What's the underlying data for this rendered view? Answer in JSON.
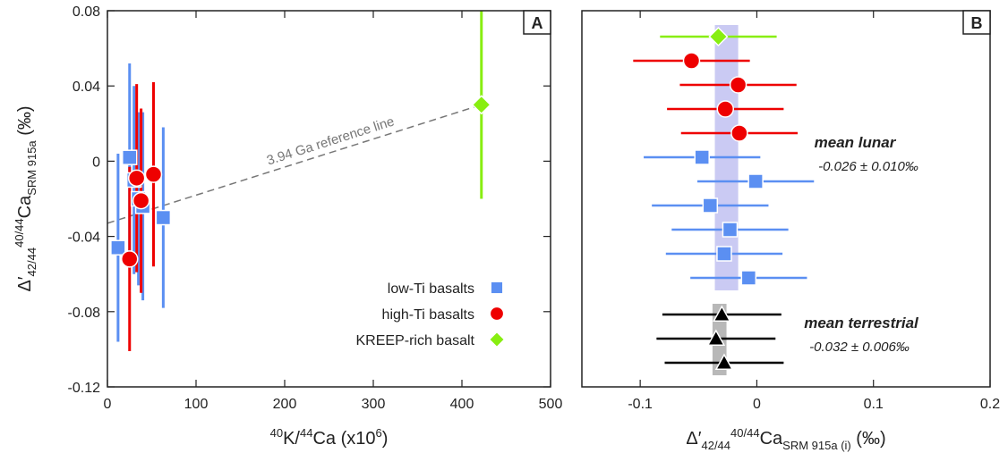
{
  "chart_data": [
    {
      "type": "scatter",
      "panel_label": "A",
      "xlabel": [
        {
          "text": "40",
          "shift": "super"
        },
        {
          "text": "K/"
        },
        {
          "text": "44",
          "shift": "super"
        },
        {
          "text": "Ca (x10"
        },
        {
          "text": "6",
          "shift": "super"
        },
        {
          "text": ")"
        }
      ],
      "ylabel": [
        {
          "text": "Δ′"
        },
        {
          "text": "42/44",
          "shift": "sub"
        },
        {
          "text": "40/44",
          "shift": "super"
        },
        {
          "text": "Ca"
        },
        {
          "text": "SRM 915a",
          "shift": "sub"
        },
        {
          "text": " (‰)"
        }
      ],
      "xlim": [
        0,
        500
      ],
      "xticks": [
        0,
        100,
        200,
        300,
        400,
        500
      ],
      "ylim": [
        -0.12,
        0.08
      ],
      "yticks": [
        -0.12,
        -0.08,
        -0.04,
        0,
        0.04,
        0.08
      ],
      "legend": "lower right",
      "reference_line": {
        "label": "3.94 Ga reference line",
        "x": [
          0,
          422
        ],
        "values": [
          -0.033,
          0.03
        ],
        "color": "#777777"
      },
      "series": [
        {
          "name": "low-Ti basalts",
          "marker": "square",
          "color": "#5b8ff2",
          "x": [
            25,
            12,
            63,
            35,
            40,
            30
          ],
          "values": [
            0.002,
            -0.046,
            -0.03,
            -0.02,
            -0.024,
            -0.01
          ],
          "errors": [
            0.05,
            0.05,
            0.048,
            0.046,
            0.05,
            0.05
          ]
        },
        {
          "name": "high-Ti basalts",
          "marker": "circle",
          "color": "#ee0000",
          "x": [
            33,
            52,
            38,
            25
          ],
          "values": [
            -0.009,
            -0.007,
            -0.021,
            -0.052
          ],
          "errors": [
            0.05,
            0.049,
            0.049,
            0.049
          ]
        },
        {
          "name": "KREEP-rich basalt",
          "marker": "diamond",
          "color": "#88ee11",
          "x": [
            422
          ],
          "values": [
            0.03
          ],
          "errors": [
            0.05
          ]
        }
      ]
    },
    {
      "type": "dot",
      "panel_label": "B",
      "xlabel": [
        {
          "text": "Δ′"
        },
        {
          "text": "42/44",
          "shift": "sub"
        },
        {
          "text": "40/44",
          "shift": "super"
        },
        {
          "text": "Ca"
        },
        {
          "text": "SRM 915a (i)",
          "shift": "sub"
        },
        {
          "text": " (‰)"
        }
      ],
      "xlim": [
        -0.15,
        0.2
      ],
      "xticks": [
        -0.1,
        0,
        0.1,
        0.2
      ],
      "bands": [
        {
          "label": "mean lunar",
          "text": "-0.026 ± 0.010‰",
          "mean": -0.026,
          "err": 0.01,
          "color": "#c4c4f2"
        },
        {
          "label": "mean terrestrial",
          "text": "-0.032 ± 0.006‰",
          "mean": -0.032,
          "err": 0.006,
          "color": "#b0b0b0"
        }
      ],
      "series": [
        {
          "marker": "diamond",
          "color": "#88ee11",
          "values": [
            -0.033
          ],
          "errors": [
            0.05
          ]
        },
        {
          "marker": "circle",
          "color": "#ee0000",
          "values": [
            -0.056,
            -0.016,
            -0.027,
            -0.015
          ],
          "errors": [
            0.05,
            0.05,
            0.05,
            0.05
          ]
        },
        {
          "marker": "square",
          "color": "#5b8ff2",
          "values": [
            -0.047,
            -0.001,
            -0.04,
            -0.023,
            -0.028,
            -0.007
          ],
          "errors": [
            0.05,
            0.05,
            0.05,
            0.05,
            0.05,
            0.05
          ]
        },
        {
          "marker": "triangle",
          "color": "#000000",
          "values": [
            -0.03,
            -0.035,
            -0.028
          ],
          "errors": [
            0.051,
            0.051,
            0.051
          ]
        }
      ]
    }
  ]
}
